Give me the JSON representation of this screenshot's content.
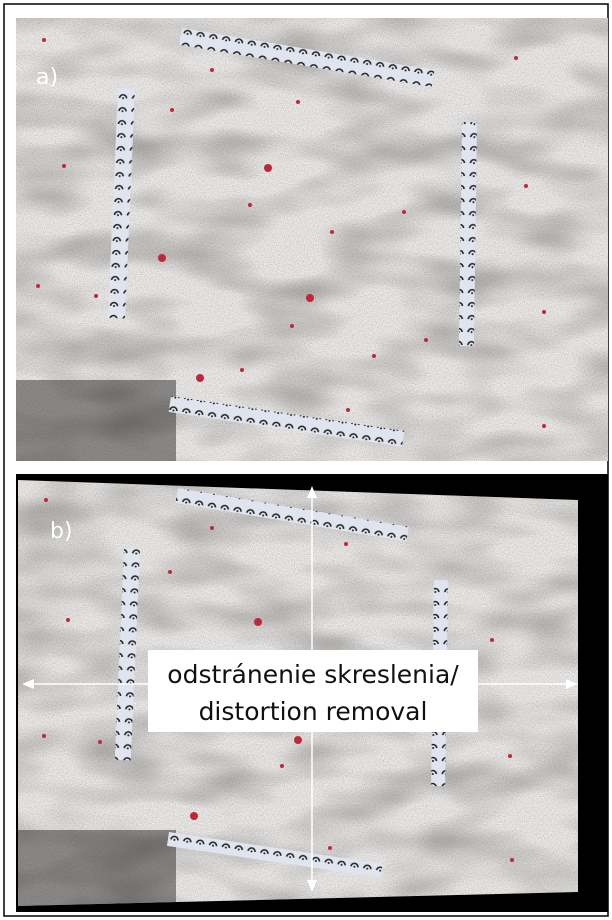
{
  "panels": [
    {
      "label": "a)"
    },
    {
      "label": "b)"
    }
  ],
  "caption": {
    "lines": [
      "odstránenie skreslenia/",
      "distortion removal"
    ]
  }
}
